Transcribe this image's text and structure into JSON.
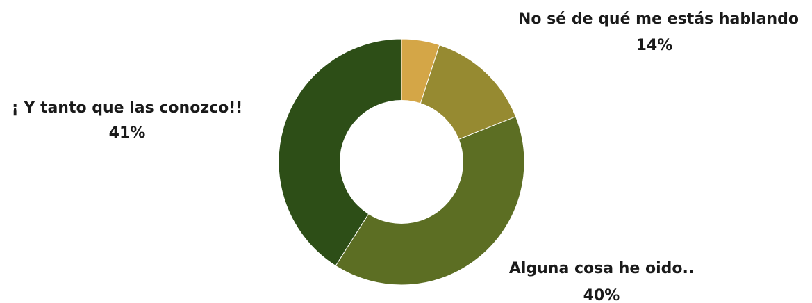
{
  "chart_data": {
    "type": "pie",
    "donut": true,
    "title": "",
    "legend": "none",
    "slices": [
      {
        "label": "",
        "value_text": "",
        "value": 5,
        "color": "#d4a647"
      },
      {
        "label": "No sé de qué me estás hablando",
        "value_text": "14%",
        "value": 14,
        "color": "#968a31"
      },
      {
        "label": "Alguna cosa he oido..",
        "value_text": "40%",
        "value": 40,
        "color": "#5c6e23"
      },
      {
        "label": "¡ Y tanto que las conozco!!",
        "value_text": "41%",
        "value": 41,
        "color": "#2d4e17"
      }
    ]
  }
}
